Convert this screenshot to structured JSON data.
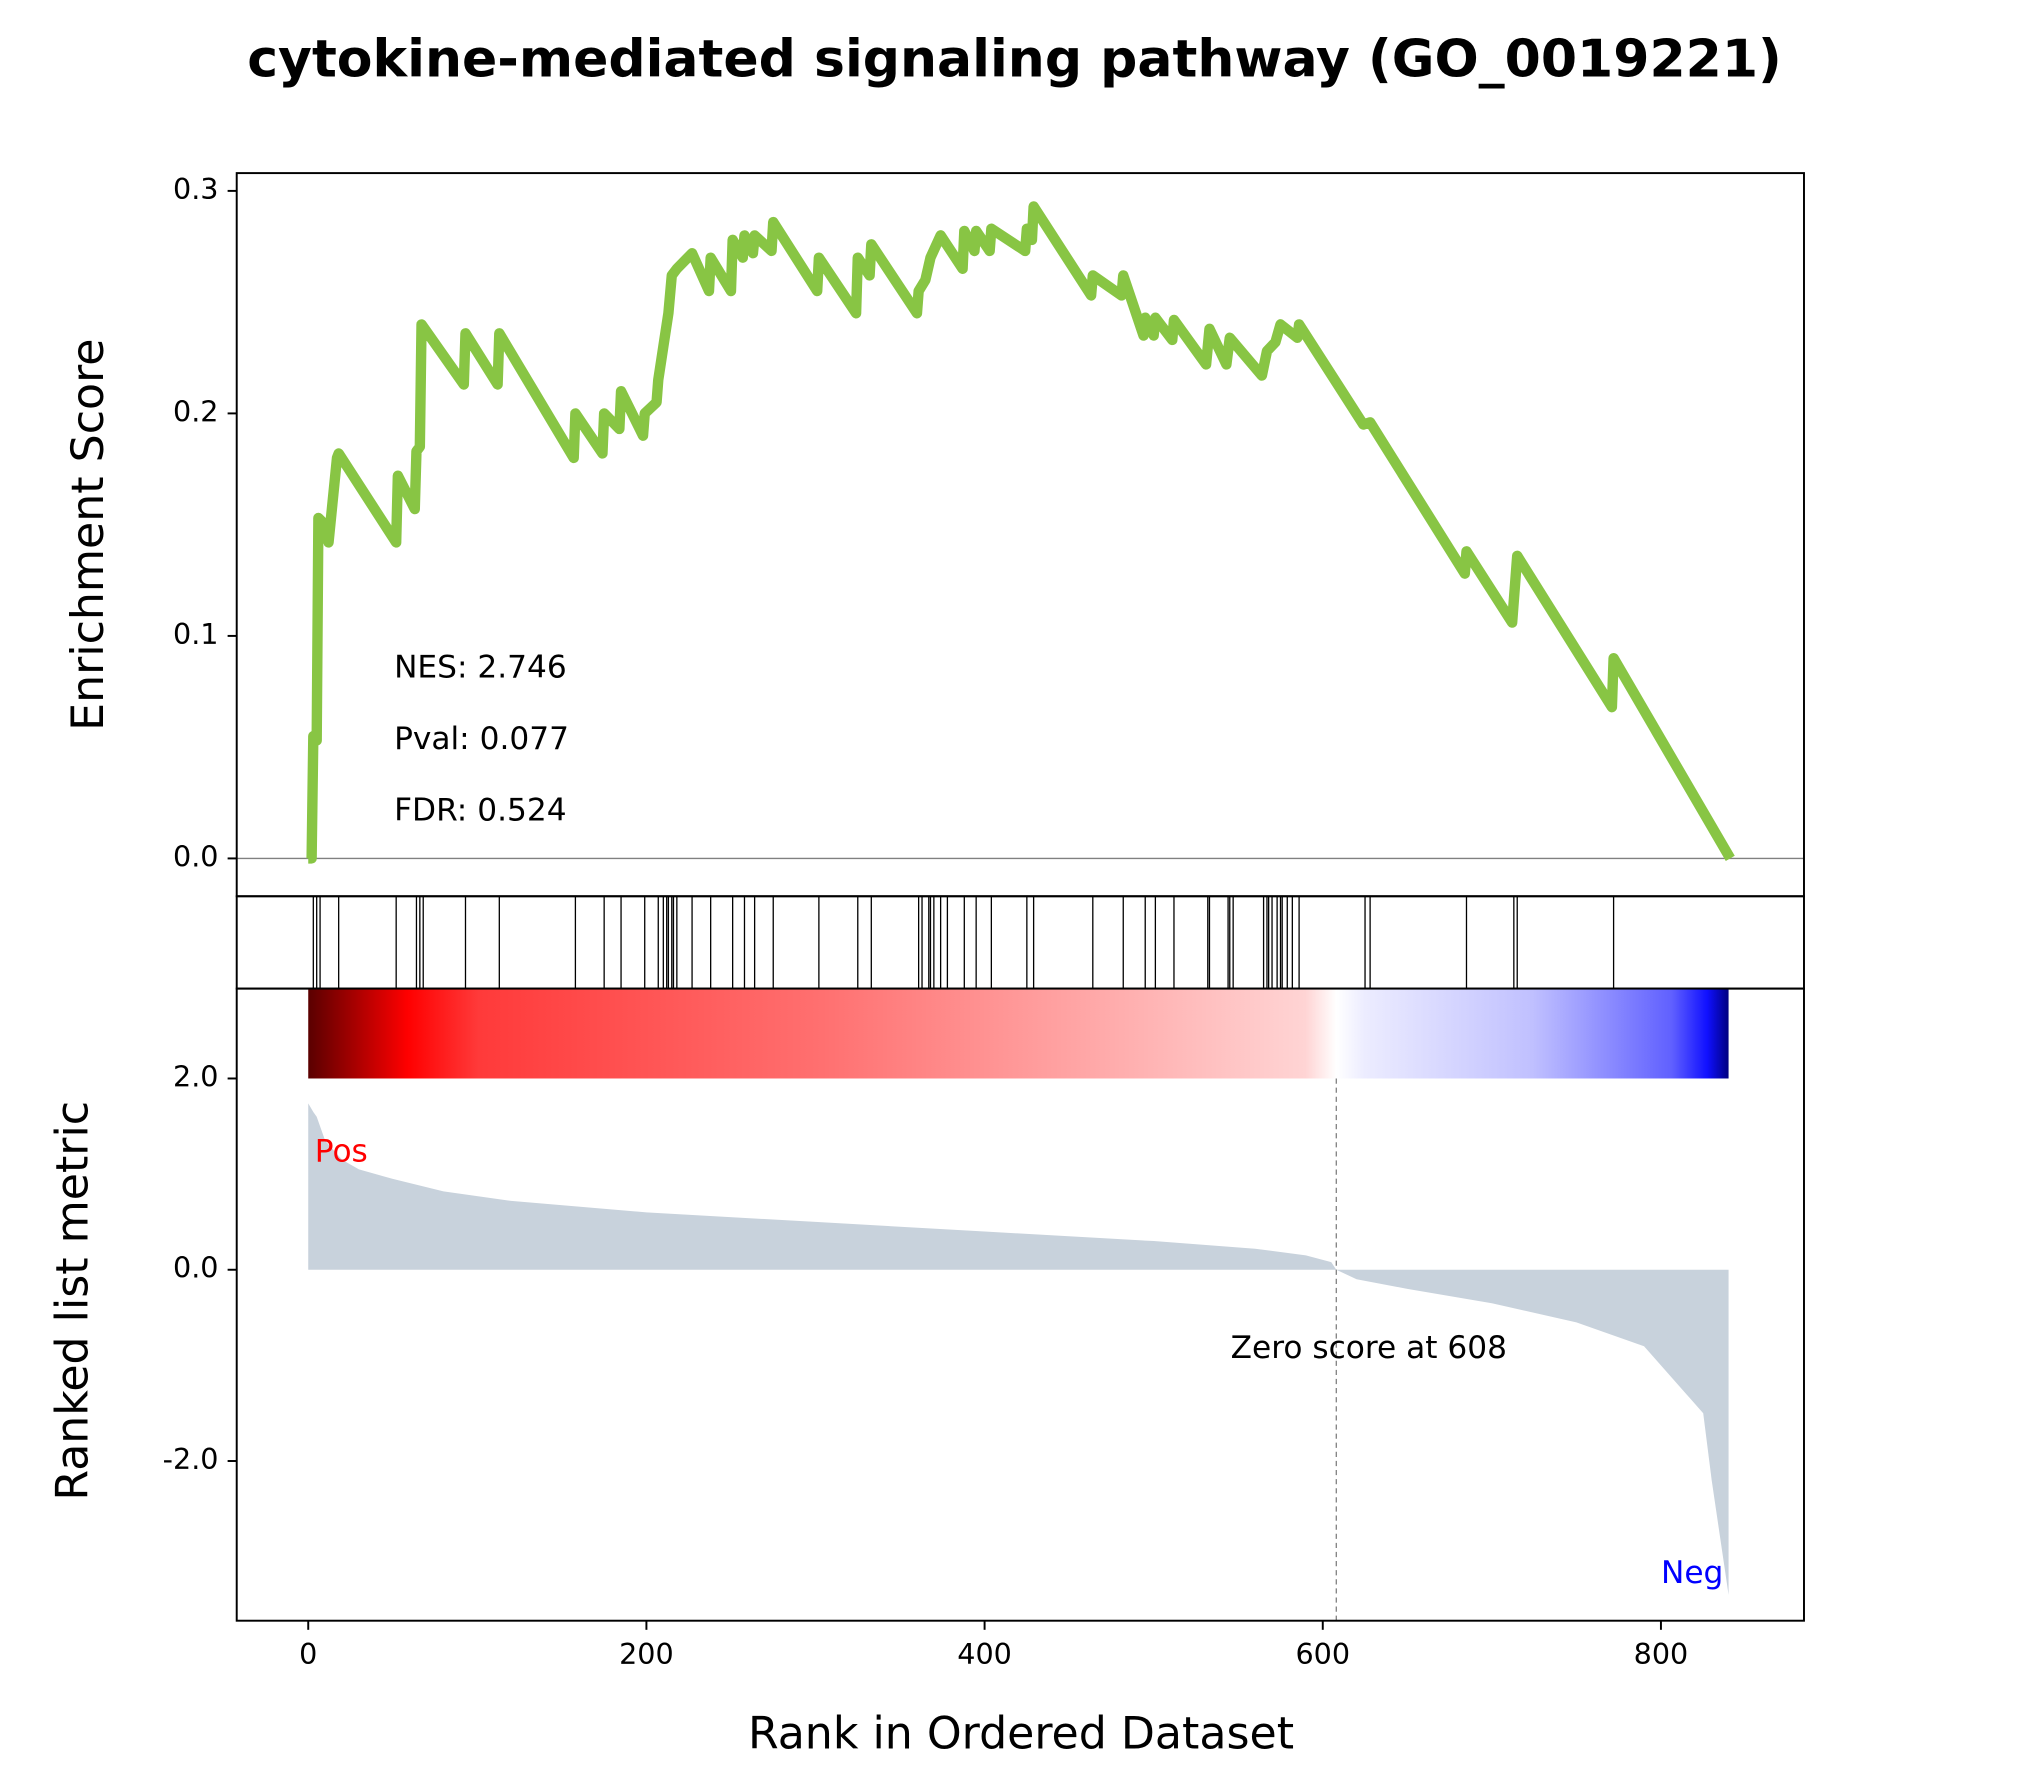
{
  "chart_data": [
    {
      "type": "line",
      "title": "cytokine-mediated signaling pathway (GO_0019221)",
      "ylabel": "Enrichment Score",
      "color": "#88c544",
      "xlim": [
        -42.3,
        884.6
      ],
      "ylim": [
        -0.017,
        0.308
      ],
      "yticks": [
        {
          "value": 0,
          "label": "0.0"
        },
        0.1,
        0.2,
        0.3
      ],
      "annotations": [
        "NES: 2.746",
        "Pval: 0.077",
        "FDR: 0.524"
      ],
      "x": [
        0,
        2,
        3,
        5,
        6,
        10,
        12,
        17,
        18,
        52,
        53,
        63,
        64,
        66,
        67,
        92,
        93,
        112,
        113,
        157,
        158,
        174,
        175,
        184,
        185,
        198,
        199,
        206,
        207,
        210,
        213,
        215,
        218,
        227,
        237,
        238,
        250,
        251,
        257,
        258,
        263,
        264,
        274,
        275,
        301,
        302,
        324,
        325,
        332,
        333,
        360,
        361,
        365,
        368,
        374,
        387,
        388,
        394,
        395,
        403,
        404,
        424,
        425,
        428,
        429,
        463,
        464,
        481,
        482,
        494,
        495,
        500,
        501,
        511,
        512,
        531,
        533,
        543,
        545,
        564,
        567,
        572,
        575,
        585,
        586,
        624,
        628,
        684,
        685,
        712,
        715,
        771,
        772,
        841
      ],
      "values": [
        0,
        0,
        0.055,
        0.053,
        0.153,
        0.15,
        0.142,
        0.18,
        0.182,
        0.142,
        0.172,
        0.157,
        0.183,
        0.185,
        0.24,
        0.213,
        0.236,
        0.213,
        0.236,
        0.18,
        0.2,
        0.182,
        0.2,
        0.193,
        0.21,
        0.19,
        0.2,
        0.205,
        0.215,
        0.23,
        0.245,
        0.262,
        0.265,
        0.272,
        0.255,
        0.27,
        0.255,
        0.278,
        0.27,
        0.28,
        0.272,
        0.28,
        0.273,
        0.286,
        0.255,
        0.27,
        0.245,
        0.27,
        0.262,
        0.276,
        0.245,
        0.255,
        0.26,
        0.27,
        0.28,
        0.265,
        0.282,
        0.273,
        0.282,
        0.273,
        0.283,
        0.273,
        0.283,
        0.278,
        0.293,
        0.253,
        0.262,
        0.253,
        0.262,
        0.235,
        0.243,
        0.235,
        0.243,
        0.233,
        0.242,
        0.222,
        0.238,
        0.222,
        0.234,
        0.217,
        0.228,
        0.232,
        0.24,
        0.234,
        0.24,
        0.195,
        0.196,
        0.128,
        0.138,
        0.106,
        0.136,
        0.068,
        0.09,
        0
      ]
    },
    {
      "type": "hits",
      "color": "#000000",
      "xlim": [
        -42.3,
        884.6
      ],
      "x": [
        3,
        5,
        7,
        18,
        52,
        64,
        66,
        68,
        93,
        113,
        158,
        175,
        185,
        199,
        207,
        210,
        212,
        213,
        215,
        216,
        218,
        227,
        238,
        251,
        258,
        264,
        275,
        302,
        325,
        333,
        361,
        363,
        367,
        368,
        370,
        374,
        378,
        388,
        395,
        404,
        425,
        429,
        464,
        482,
        495,
        501,
        512,
        532,
        533,
        544,
        545,
        547,
        565,
        567,
        568,
        570,
        573,
        575,
        576,
        579,
        582,
        586,
        625,
        628,
        685,
        713,
        715,
        772
      ]
    },
    {
      "type": "area",
      "color": "#c8d2dc",
      "ylabel": "Ranked list metric",
      "xlabel": "Rank in Ordered Dataset",
      "xlim": [
        -42.3,
        884.6
      ],
      "xticks": [
        0,
        200,
        400,
        600,
        800
      ],
      "ylim": [
        -3.67,
        2.94
      ],
      "yticks": [
        {
          "value": 2,
          "label": "2.0"
        },
        {
          "value": 0,
          "label": "0.0"
        },
        {
          "value": -2,
          "label": "-2.0"
        }
      ],
      "zero_score": 608,
      "zero_label": "Zero score at 608",
      "pos_label": "Pos",
      "neg_label": "Neg",
      "x": [
        0,
        3,
        5,
        10,
        20,
        30,
        50,
        80,
        120,
        200,
        300,
        400,
        500,
        560,
        590,
        605,
        608,
        620,
        650,
        700,
        750,
        790,
        815,
        825,
        830,
        835,
        840
      ],
      "values": [
        1.74,
        1.65,
        1.6,
        1.35,
        1.15,
        1.05,
        0.95,
        0.82,
        0.72,
        0.6,
        0.5,
        0.4,
        0.3,
        0.22,
        0.15,
        0.08,
        0,
        -0.1,
        -0.2,
        -0.35,
        -0.55,
        -0.8,
        -1.3,
        -1.5,
        -2.2,
        -2.8,
        -3.4
      ]
    }
  ]
}
